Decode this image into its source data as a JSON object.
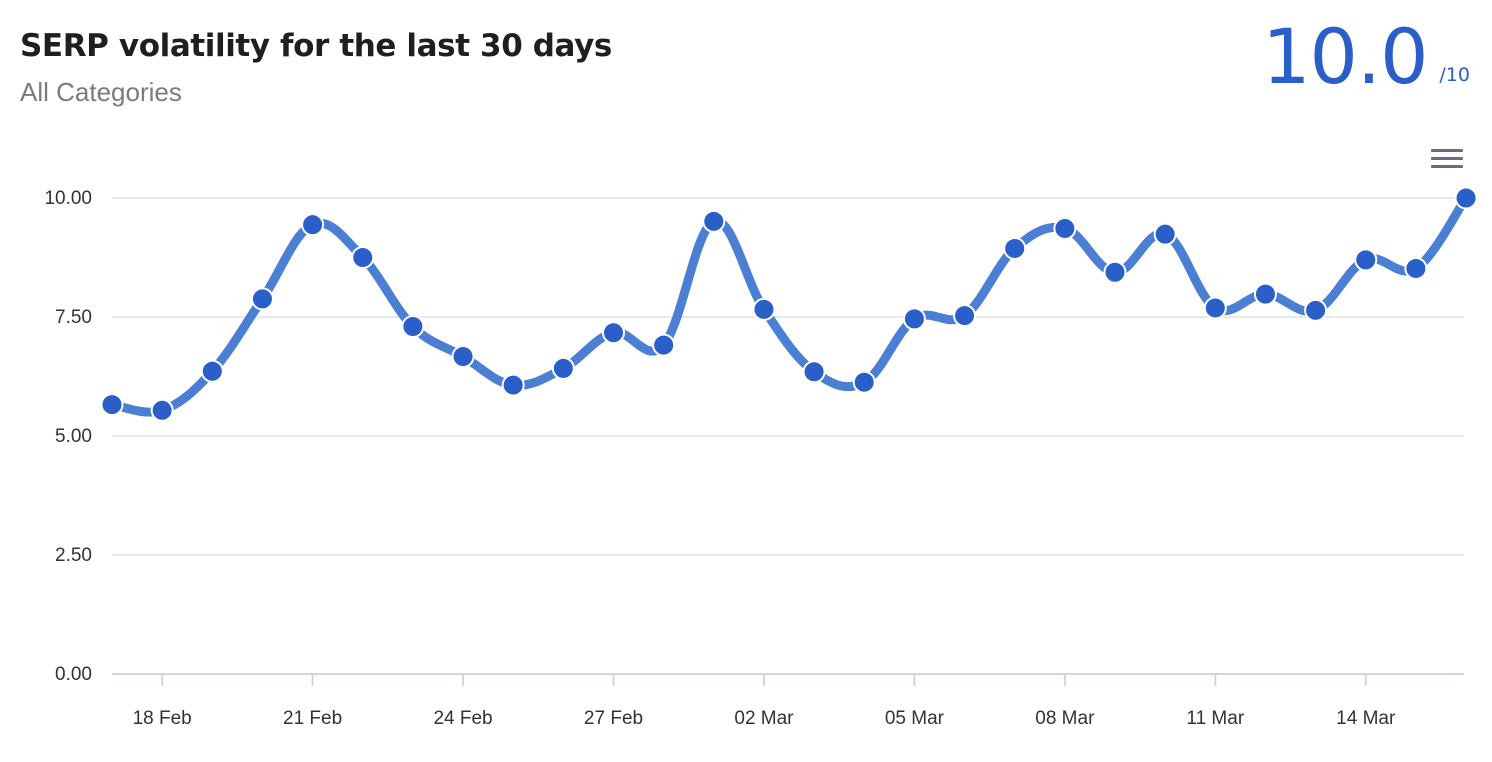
{
  "header": {
    "title": "SERP volatility for the last 30 days",
    "subtitle": "All Categories"
  },
  "score": {
    "value": "10.0",
    "max_label": "/10"
  },
  "menu": {
    "icon": "hamburger-menu-icon"
  },
  "colors": {
    "accent": "#2a5fc9",
    "line": "#4a7fd4",
    "grid": "#e1e1e1"
  },
  "chart_data": {
    "type": "line",
    "title": "SERP volatility for the last 30 days",
    "subtitle": "All Categories",
    "xlabel": "",
    "ylabel": "",
    "ylim": [
      0,
      10
    ],
    "yticks": [
      "0.00",
      "2.50",
      "5.00",
      "7.50",
      "10.00"
    ],
    "ytick_values": [
      0,
      2.5,
      5,
      7.5,
      10
    ],
    "xticks": [
      "18 Feb",
      "21 Feb",
      "24 Feb",
      "27 Feb",
      "02 Mar",
      "05 Mar",
      "08 Mar",
      "11 Mar",
      "14 Mar"
    ],
    "grid": true,
    "legend": "none",
    "x": [
      "17 Feb",
      "18 Feb",
      "19 Feb",
      "20 Feb",
      "21 Feb",
      "22 Feb",
      "23 Feb",
      "24 Feb",
      "25 Feb",
      "26 Feb",
      "27 Feb",
      "28 Feb",
      "01 Mar",
      "02 Mar",
      "03 Mar",
      "04 Mar",
      "05 Mar",
      "06 Mar",
      "07 Mar",
      "08 Mar",
      "09 Mar",
      "10 Mar",
      "11 Mar",
      "12 Mar",
      "13 Mar",
      "14 Mar",
      "15 Mar",
      "16 Mar"
    ],
    "series": [
      {
        "values": [
          5.66,
          5.54,
          6.36,
          7.88,
          9.44,
          8.75,
          7.3,
          6.67,
          6.07,
          6.42,
          7.17,
          6.91,
          9.51,
          7.66,
          6.35,
          6.13,
          7.46,
          7.53,
          8.94,
          9.36,
          8.44,
          9.24,
          7.69,
          7.98,
          7.64,
          8.7,
          8.52,
          10.0
        ]
      }
    ]
  }
}
